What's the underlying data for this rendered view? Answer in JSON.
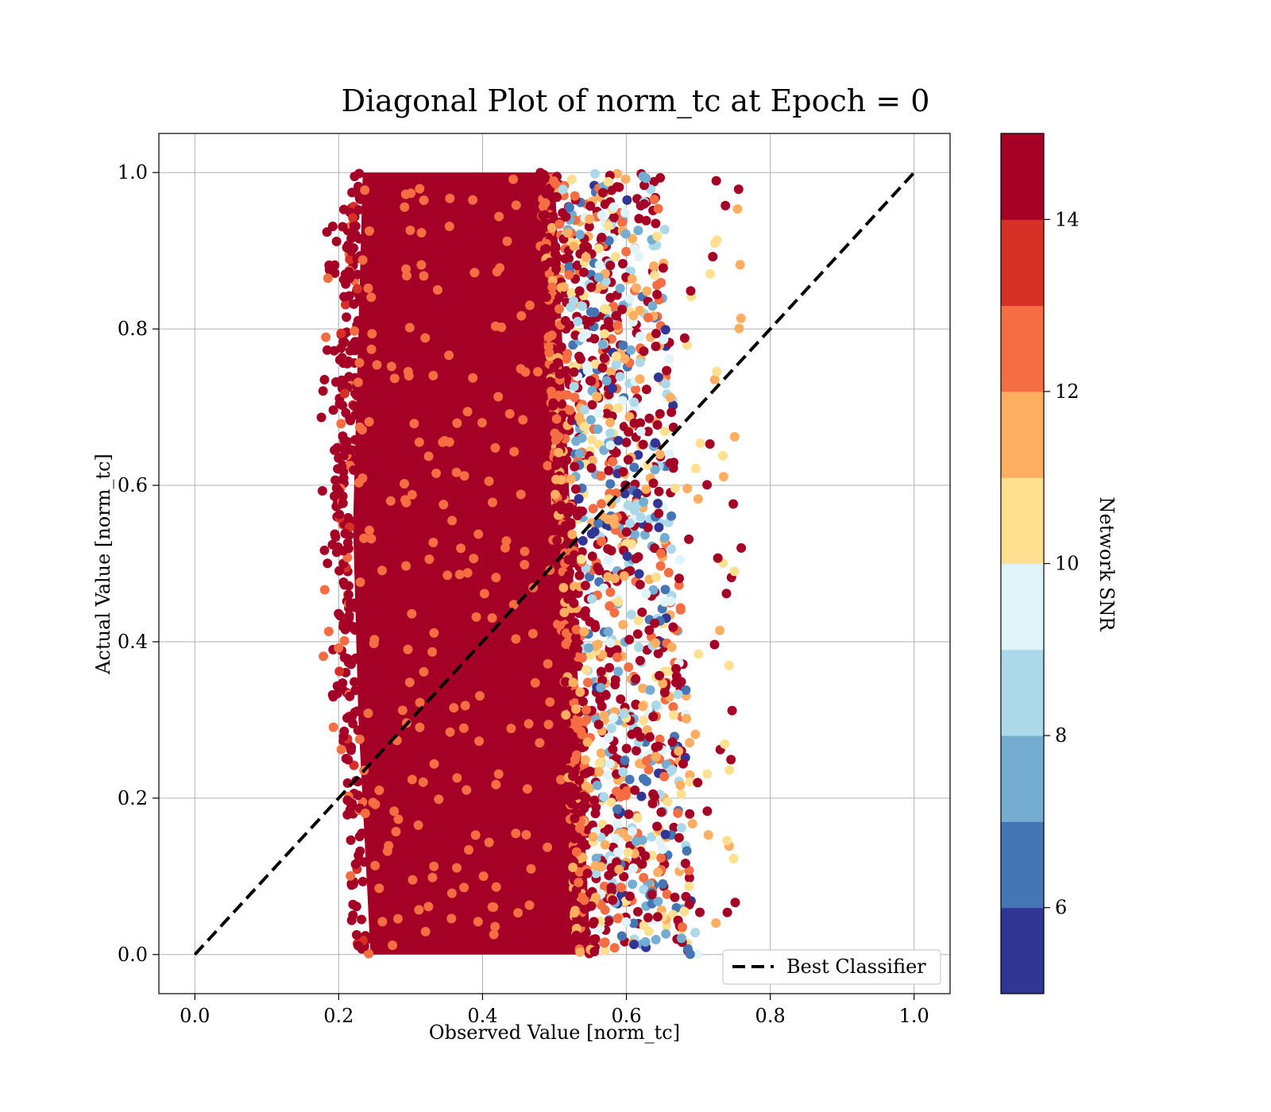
{
  "chart_data": {
    "type": "scatter",
    "title": "Diagonal Plot of norm_tc at Epoch = 0",
    "xlabel": "Observed Value [norm_tc]",
    "ylabel": "Actual Value [norm_tc]",
    "xlim": [
      -0.05,
      1.05
    ],
    "ylim": [
      -0.05,
      1.05
    ],
    "xticks": [
      "0.0",
      "0.2",
      "0.4",
      "0.6",
      "0.8",
      "1.0"
    ],
    "yticks": [
      "0.0",
      "0.2",
      "0.4",
      "0.6",
      "0.8",
      "1.0"
    ],
    "grid": true,
    "series": [
      {
        "name": "Best Classifier",
        "kind": "line",
        "style": "dashed",
        "color": "#000000",
        "x": [
          0.0,
          1.0
        ],
        "y": [
          0.0,
          1.0
        ]
      }
    ],
    "scatter_distribution": {
      "x_range": [
        0.18,
        0.78
      ],
      "y_range": [
        0.0,
        1.0
      ],
      "dense_region_x": [
        0.22,
        0.55
      ],
      "note_color_value": "Network SNR"
    },
    "legend": {
      "position": "bottom-right",
      "entries": [
        "Best Classifier"
      ]
    },
    "colorbar": {
      "label": "Network SNR",
      "range": [
        5,
        15
      ],
      "ticks": [
        "6",
        "8",
        "10",
        "12",
        "14"
      ],
      "tick_values": [
        6,
        8,
        10,
        12,
        14
      ],
      "colors": [
        "#313695",
        "#4575b4",
        "#74add1",
        "#abd9e9",
        "#e0f3f8",
        "#fee090",
        "#fdae61",
        "#f46d43",
        "#d73027",
        "#a50026"
      ]
    }
  }
}
